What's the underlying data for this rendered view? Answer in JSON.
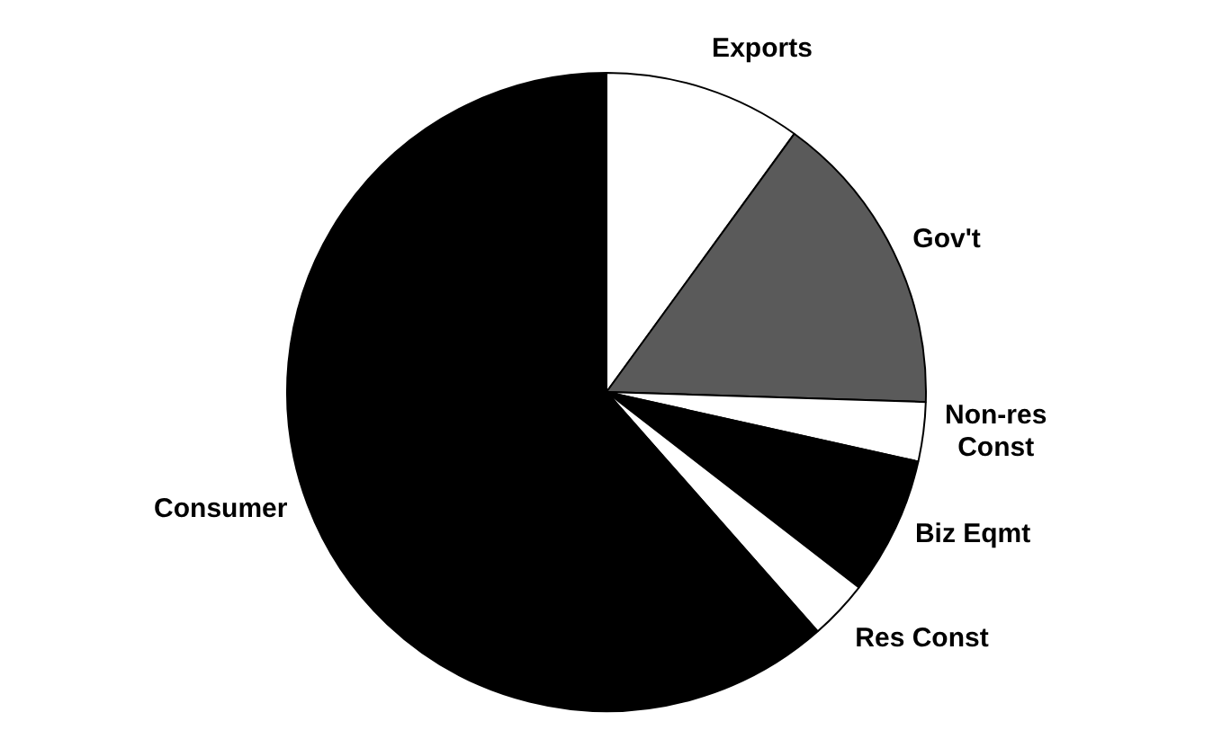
{
  "chart_data": {
    "type": "pie",
    "categories": [
      "Exports",
      "Gov't",
      "Non-res Const",
      "Biz Eqmt",
      "Res Const",
      "Consumer"
    ],
    "values": [
      10,
      15.5,
      3,
      7,
      3,
      61.5
    ],
    "colors": [
      "#ffffff",
      "#5a5a5a",
      "#ffffff",
      "#000000",
      "#ffffff",
      "#000000"
    ],
    "legend": false
  }
}
